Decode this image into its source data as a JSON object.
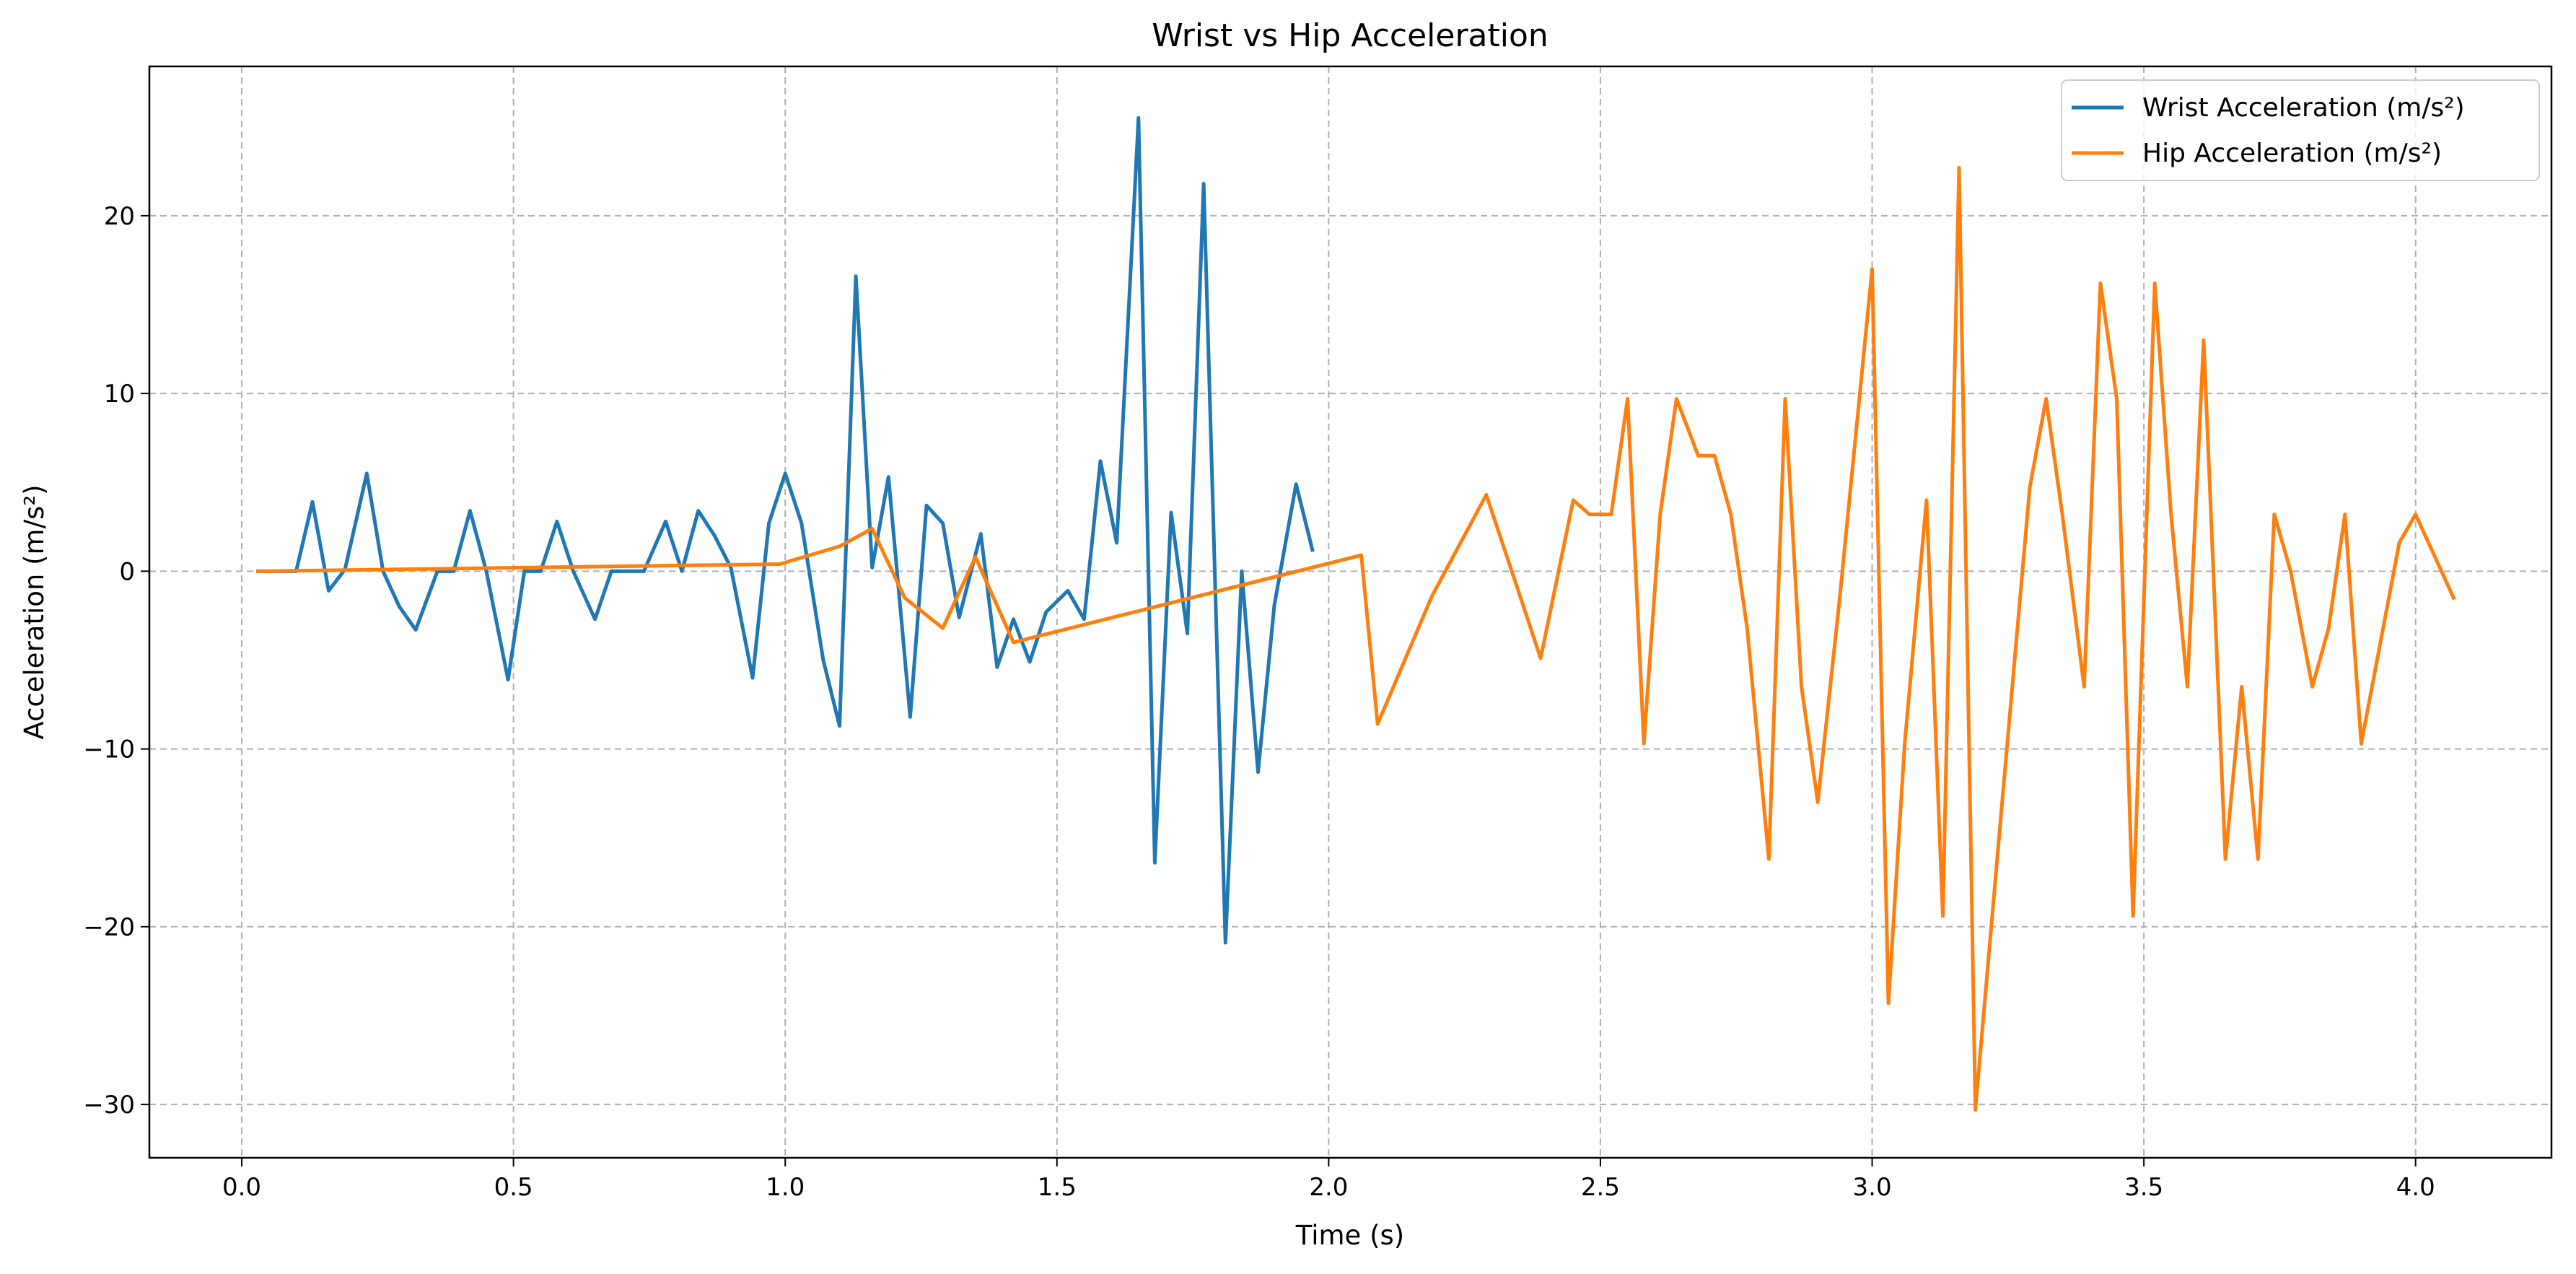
{
  "chart_data": {
    "type": "line",
    "title": "Wrist vs Hip Acceleration",
    "xlabel": "Time (s)",
    "ylabel": "Acceleration (m/s²)",
    "xlim": [
      -0.17,
      4.25
    ],
    "ylim": [
      -33.0,
      28.4
    ],
    "xticks": [
      0.0,
      0.5,
      1.0,
      1.5,
      2.0,
      2.5,
      3.0,
      3.5,
      4.0
    ],
    "xtick_labels": [
      "0.0",
      "0.5",
      "1.0",
      "1.5",
      "2.0",
      "2.5",
      "3.0",
      "3.5",
      "4.0"
    ],
    "yticks": [
      -30,
      -20,
      -10,
      0,
      10,
      20
    ],
    "ytick_labels": [
      "−30",
      "−20",
      "−10",
      "0",
      "10",
      "20"
    ],
    "grid": true,
    "legend_position": "top-right",
    "series": [
      {
        "name": "Wrist Acceleration (m/s²)",
        "color": "#1f77b4",
        "x": [
          0.03,
          0.07,
          0.1,
          0.13,
          0.16,
          0.19,
          0.23,
          0.26,
          0.29,
          0.32,
          0.36,
          0.39,
          0.42,
          0.45,
          0.49,
          0.52,
          0.55,
          0.58,
          0.61,
          0.65,
          0.68,
          0.71,
          0.74,
          0.78,
          0.81,
          0.84,
          0.87,
          0.9,
          0.94,
          0.97,
          1.0,
          1.03,
          1.07,
          1.1,
          1.13,
          1.16,
          1.19,
          1.23,
          1.26,
          1.29,
          1.32,
          1.36,
          1.39,
          1.42,
          1.45,
          1.48,
          1.52,
          1.55,
          1.58,
          1.61,
          1.65,
          1.68,
          1.71,
          1.74,
          1.77,
          1.81,
          1.84,
          1.87,
          1.9,
          1.94,
          1.97
        ],
        "y": [
          0.0,
          0.0,
          0.0,
          3.9,
          -1.1,
          0.1,
          5.5,
          0.0,
          -2.0,
          -3.3,
          0.0,
          0.0,
          3.4,
          0.0,
          -6.1,
          0.0,
          0.0,
          2.8,
          0.0,
          -2.7,
          0.0,
          0.0,
          0.0,
          2.8,
          0.0,
          3.4,
          2.0,
          0.2,
          -6.0,
          2.7,
          5.5,
          2.7,
          -5.0,
          -8.7,
          16.6,
          0.2,
          5.3,
          -8.2,
          3.7,
          2.7,
          -2.6,
          2.1,
          -5.4,
          -2.7,
          -5.1,
          -2.3,
          -1.1,
          -2.7,
          6.2,
          1.6,
          25.5,
          -16.4,
          3.3,
          -3.5,
          21.8,
          -20.9,
          0.0,
          -11.3,
          -1.9,
          4.9,
          1.2
        ]
      },
      {
        "name": "Hip Acceleration (m/s²)",
        "color": "#ff7f0e",
        "x": [
          0.03,
          0.99,
          1.1,
          1.16,
          1.22,
          1.29,
          1.35,
          1.42,
          2.06,
          2.09,
          2.19,
          2.29,
          2.35,
          2.39,
          2.45,
          2.48,
          2.52,
          2.55,
          2.58,
          2.61,
          2.64,
          2.68,
          2.71,
          2.74,
          2.77,
          2.81,
          2.84,
          2.87,
          2.9,
          2.94,
          3.0,
          3.03,
          3.06,
          3.1,
          3.13,
          3.16,
          3.19,
          3.23,
          3.29,
          3.32,
          3.35,
          3.39,
          3.42,
          3.45,
          3.48,
          3.52,
          3.55,
          3.58,
          3.61,
          3.65,
          3.68,
          3.71,
          3.74,
          3.77,
          3.81,
          3.84,
          3.87,
          3.9,
          3.97,
          4.0,
          4.07
        ],
        "y": [
          0.0,
          0.4,
          1.4,
          2.4,
          -1.5,
          -3.2,
          0.8,
          -4.0,
          0.9,
          -8.6,
          -1.4,
          4.3,
          -1.2,
          -4.9,
          4.0,
          3.2,
          3.2,
          9.7,
          -9.7,
          3.2,
          9.7,
          6.5,
          6.5,
          3.2,
          -3.2,
          -16.2,
          9.7,
          -6.5,
          -13.0,
          -1.6,
          17.0,
          -24.3,
          -9.7,
          4.0,
          -19.4,
          22.7,
          -30.3,
          -16.2,
          4.7,
          9.7,
          3.2,
          -6.5,
          16.2,
          9.7,
          -19.4,
          16.2,
          3.2,
          -6.5,
          13.0,
          -16.2,
          -6.5,
          -16.2,
          3.2,
          0.0,
          -6.5,
          -3.2,
          3.2,
          -9.7,
          1.6,
          3.2,
          -1.5
        ]
      }
    ]
  }
}
